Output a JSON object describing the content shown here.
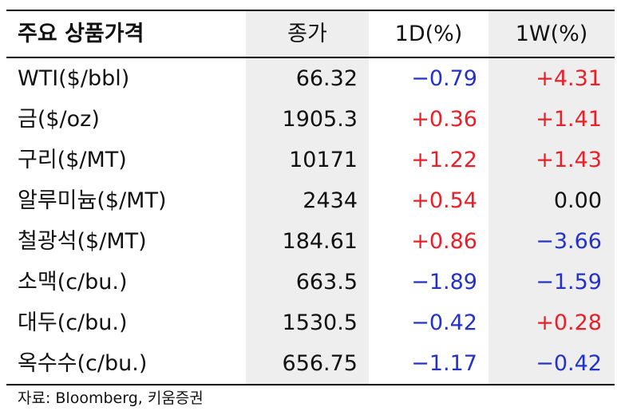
{
  "header": {
    "name": "주요 상품가격",
    "close": "종가",
    "d1": "1D(%)",
    "w1": "1W(%)"
  },
  "rows": [
    {
      "name": "WTI($/bbl)",
      "close": "66.32",
      "d1": "−0.79",
      "w1": "+4.31"
    },
    {
      "name": "금($/oz)",
      "close": "1905.3",
      "d1": "+0.36",
      "w1": "+1.41"
    },
    {
      "name": "구리($/MT)",
      "close": "10171",
      "d1": "+1.22",
      "w1": "+1.43"
    },
    {
      "name": "알루미늄($/MT)",
      "close": "2434",
      "d1": "+0.54",
      "w1": "0.00"
    },
    {
      "name": "철광석($/MT)",
      "close": "184.61",
      "d1": "+0.86",
      "w1": "−3.66"
    },
    {
      "name": "소맥(c/bu.)",
      "close": "663.5",
      "d1": "−1.89",
      "w1": "−1.59"
    },
    {
      "name": "대두(c/bu.)",
      "close": "1530.5",
      "d1": "−0.42",
      "w1": "+0.28"
    },
    {
      "name": "옥수수(c/bu.)",
      "close": "656.75",
      "d1": "−1.17",
      "w1": "−0.42"
    }
  ],
  "source": "자료: Bloomberg, 키움증권",
  "colors": {
    "positive": "#e8202a",
    "negative": "#2432c8",
    "neutral": "#111111",
    "shade": "#eeeeee"
  }
}
